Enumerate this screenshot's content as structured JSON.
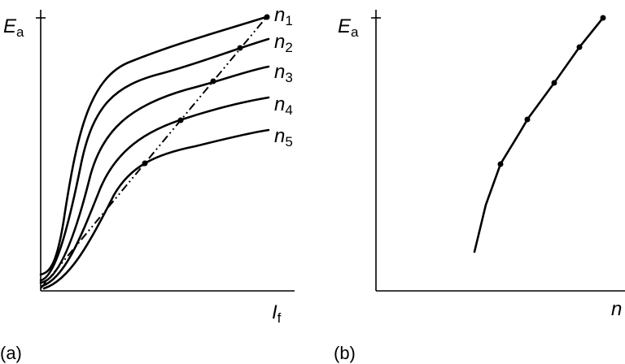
{
  "panels": [
    {
      "caption": "(a)",
      "y_label": {
        "main": "E",
        "sub": "a"
      },
      "x_label": {
        "main": "I",
        "sub": "f"
      },
      "curve_labels": [
        {
          "main": "n",
          "sub": "1"
        },
        {
          "main": "n",
          "sub": "2"
        },
        {
          "main": "n",
          "sub": "3"
        },
        {
          "main": "n",
          "sub": "4"
        },
        {
          "main": "n",
          "sub": "5"
        }
      ]
    },
    {
      "caption": "(b)",
      "y_label": {
        "main": "E",
        "sub": "a"
      },
      "x_label": {
        "main": "n"
      }
    }
  ]
}
